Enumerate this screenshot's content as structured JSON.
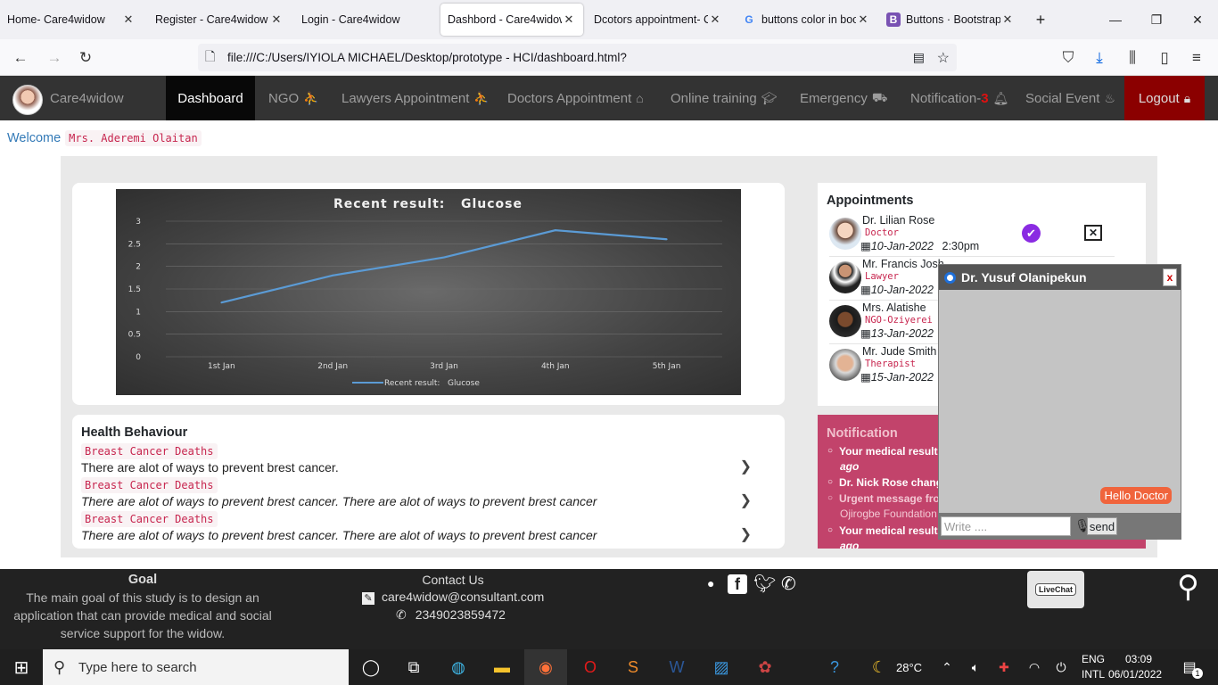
{
  "browser": {
    "tabs": [
      {
        "title": "Home- Care4widow",
        "active": false
      },
      {
        "title": "Register - Care4widow",
        "active": false
      },
      {
        "title": "Login - Care4widow",
        "active": false
      },
      {
        "title": "Dashbord - Care4widow",
        "active": true
      },
      {
        "title": "Dcotors appointment- C",
        "active": false
      },
      {
        "title": "buttons color in boo",
        "active": false
      },
      {
        "title": "Buttons · Bootstrap",
        "active": false
      }
    ],
    "url": "file:///C:/Users/IYIOLA MICHAEL/Desktop/prototype - HCI/dashboard.html?"
  },
  "app": {
    "brand": "Care4widow",
    "nav": {
      "dashboard": "Dashboard",
      "ngo": "NGO",
      "lawyers": "Lawyers Appointment",
      "doctors": "Doctors Appointment",
      "training": "Online training",
      "emergency": "Emergency",
      "notification": "Notification-",
      "notification_count": "3",
      "social": "Social Event",
      "logout": "Logout"
    },
    "welcome_label": "Welcome",
    "welcome_name": "Mrs. Aderemi Olaitan"
  },
  "chart_data": {
    "type": "line",
    "title": "Recent result:   Glucose",
    "categories": [
      "1st Jan",
      "2nd Jan",
      "3rd Jan",
      "4th Jan",
      "5th Jan"
    ],
    "series": [
      {
        "name": "Recent result:   Glucose",
        "values": [
          1.2,
          1.8,
          2.2,
          2.8,
          2.6
        ]
      }
    ],
    "yticks": [
      "0",
      "0.5",
      "1",
      "1.5",
      "2",
      "2.5",
      "3"
    ],
    "ylim": [
      0,
      3
    ],
    "grid": true,
    "legend": "bottom",
    "colors": {
      "line": "#5b9bd5"
    }
  },
  "health": {
    "title": "Health Behaviour",
    "items": [
      {
        "tag": "Breast Cancer Deaths",
        "text": "There are alot of ways to prevent brest cancer.",
        "italic": false
      },
      {
        "tag": "Breast Cancer Deaths",
        "text": "There are alot of ways to prevent brest cancer. There are alot of ways to prevent brest cancer",
        "italic": true
      },
      {
        "tag": "Breast Cancer Deaths",
        "text": "There are alot of ways to prevent brest cancer. There are alot of ways to prevent brest cancer",
        "italic": true
      }
    ]
  },
  "appointments": {
    "title": "Appointments",
    "items": [
      {
        "name": "Dr. Lilian Rose",
        "role": "Doctor",
        "date": "10-Jan-2022",
        "time": "2:30pm"
      },
      {
        "name": "Mr. Francis Josh",
        "role": "Lawyer",
        "date": "10-Jan-2022",
        "time": ""
      },
      {
        "name": "Mrs. Alatishe",
        "role": "NGO-Oziyerei F",
        "date": "13-Jan-2022",
        "time": ""
      },
      {
        "name": "Mr. Jude Smith",
        "role": "Therapist",
        "date": "15-Jan-2022",
        "time": ""
      }
    ]
  },
  "notification": {
    "title": "Notification",
    "items": [
      "Your medical result",
      "ago",
      "Dr. Nick Rose chang",
      "Urgent message fro",
      "Ojirogbe Foundation",
      "Your medical result",
      "ago"
    ]
  },
  "chat": {
    "title": "Dr. Yusuf Olanipekun",
    "close": "x",
    "message": "Hello Doctor",
    "input_placeholder": "Write ....",
    "send": "send"
  },
  "footer": {
    "goal_title": "Goal",
    "goal_text": "The main goal of this study is to design an application that can provide medical and social service support for the widow.",
    "contact_title": "Contact Us",
    "email": "care4widow@consultant.com",
    "phone": "2349023859472",
    "livechat": "LiveChat"
  },
  "taskbar": {
    "search_placeholder": "Type here to search",
    "weather": "28°C",
    "lang1": "ENG",
    "lang2": "INTL",
    "time": "03:09",
    "date": "06/01/2022",
    "notif_count": "1"
  }
}
